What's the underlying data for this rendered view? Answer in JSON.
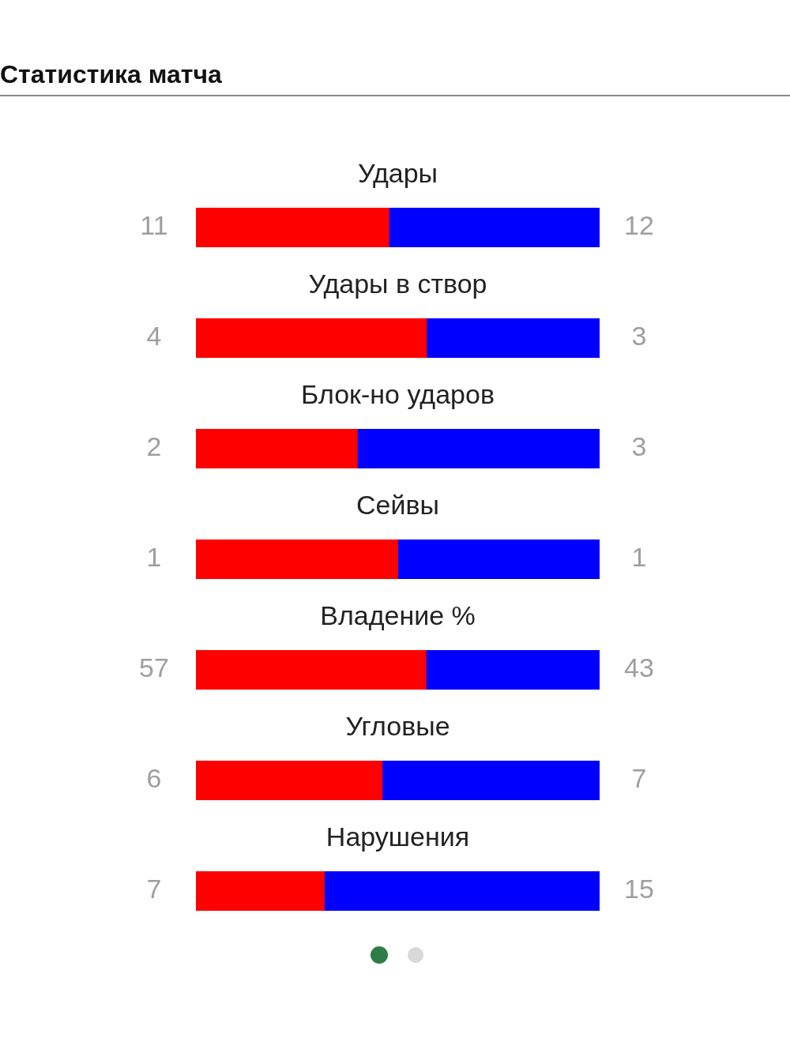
{
  "chart_data": [
    {
      "type": "bar",
      "title": "Статистика матча",
      "orientation": "horizontal",
      "stacked": true,
      "tick_labels": "y",
      "data_labels": true,
      "categories": [
        "Удары"
      ],
      "series": [
        {
          "color": "#ff0000",
          "values": [
            11
          ]
        },
        {
          "color": "#0000ff",
          "values": [
            12
          ]
        }
      ]
    },
    {
      "type": "bar",
      "orientation": "horizontal",
      "stacked": true,
      "tick_labels": "y",
      "data_labels": true,
      "categories": [
        "Удары в створ"
      ],
      "series": [
        {
          "color": "#ff0000",
          "values": [
            4
          ]
        },
        {
          "color": "#0000ff",
          "values": [
            3
          ]
        }
      ]
    },
    {
      "type": "bar",
      "orientation": "horizontal",
      "stacked": true,
      "tick_labels": "y",
      "data_labels": true,
      "categories": [
        "Блок-но ударов"
      ],
      "series": [
        {
          "color": "#ff0000",
          "values": [
            2
          ]
        },
        {
          "color": "#0000ff",
          "values": [
            3
          ]
        }
      ]
    },
    {
      "type": "bar",
      "orientation": "horizontal",
      "stacked": true,
      "tick_labels": "y",
      "data_labels": true,
      "categories": [
        "Сейвы"
      ],
      "series": [
        {
          "color": "#ff0000",
          "values": [
            1
          ]
        },
        {
          "color": "#0000ff",
          "values": [
            1
          ]
        }
      ]
    },
    {
      "type": "bar",
      "orientation": "horizontal",
      "stacked": true,
      "tick_labels": "y",
      "data_labels": true,
      "categories": [
        "Владение %"
      ],
      "series": [
        {
          "color": "#ff0000",
          "values": [
            57
          ]
        },
        {
          "color": "#0000ff",
          "values": [
            43
          ]
        }
      ]
    },
    {
      "type": "bar",
      "orientation": "horizontal",
      "stacked": true,
      "tick_labels": "y",
      "data_labels": true,
      "categories": [
        "Угловые"
      ],
      "series": [
        {
          "color": "#ff0000",
          "values": [
            6
          ]
        },
        {
          "color": "#0000ff",
          "values": [
            7
          ]
        }
      ]
    },
    {
      "type": "bar",
      "orientation": "horizontal",
      "stacked": true,
      "tick_labels": "y",
      "data_labels": true,
      "categories": [
        "Нарушения"
      ],
      "series": [
        {
          "color": "#ff0000",
          "values": [
            7
          ]
        },
        {
          "color": "#0000ff",
          "values": [
            15
          ]
        }
      ]
    }
  ]
}
